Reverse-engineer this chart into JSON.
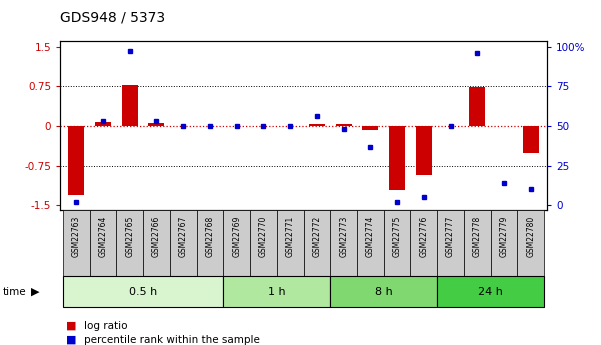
{
  "title": "GDS948 / 5373",
  "samples": [
    "GSM22763",
    "GSM22764",
    "GSM22765",
    "GSM22766",
    "GSM22767",
    "GSM22768",
    "GSM22769",
    "GSM22770",
    "GSM22771",
    "GSM22772",
    "GSM22773",
    "GSM22774",
    "GSM22775",
    "GSM22776",
    "GSM22777",
    "GSM22778",
    "GSM22779",
    "GSM22780"
  ],
  "log_ratio": [
    -1.3,
    0.07,
    0.78,
    0.05,
    0.0,
    0.0,
    0.0,
    0.0,
    0.0,
    0.04,
    0.03,
    -0.07,
    -1.22,
    -0.92,
    0.0,
    0.73,
    0.0,
    -0.52
  ],
  "percentile": [
    2,
    53,
    97,
    53,
    50,
    50,
    50,
    50,
    50,
    56,
    48,
    37,
    2,
    5,
    50,
    96,
    14,
    10
  ],
  "groups": [
    {
      "label": "0.5 h",
      "start": 0,
      "end": 6,
      "color": "#d8f5d0"
    },
    {
      "label": "1 h",
      "start": 6,
      "end": 10,
      "color": "#b0e8a0"
    },
    {
      "label": "8 h",
      "start": 10,
      "end": 14,
      "color": "#80d870"
    },
    {
      "label": "24 h",
      "start": 14,
      "end": 18,
      "color": "#44cc44"
    }
  ],
  "ylim": [
    -1.6,
    1.6
  ],
  "yticks_left": [
    -1.5,
    -0.75,
    0.0,
    0.75,
    1.5
  ],
  "yticks_right": [
    0,
    25,
    50,
    75,
    100
  ],
  "right_labels": [
    "0",
    "25",
    "50",
    "75",
    "100%"
  ],
  "bar_color": "#cc0000",
  "dot_color": "#0000cc",
  "hline_color": "#cc0000",
  "bg_color": "#ffffff",
  "sample_box_color": "#cccccc",
  "figure_width": 6.01,
  "figure_height": 3.45,
  "dpi": 100
}
